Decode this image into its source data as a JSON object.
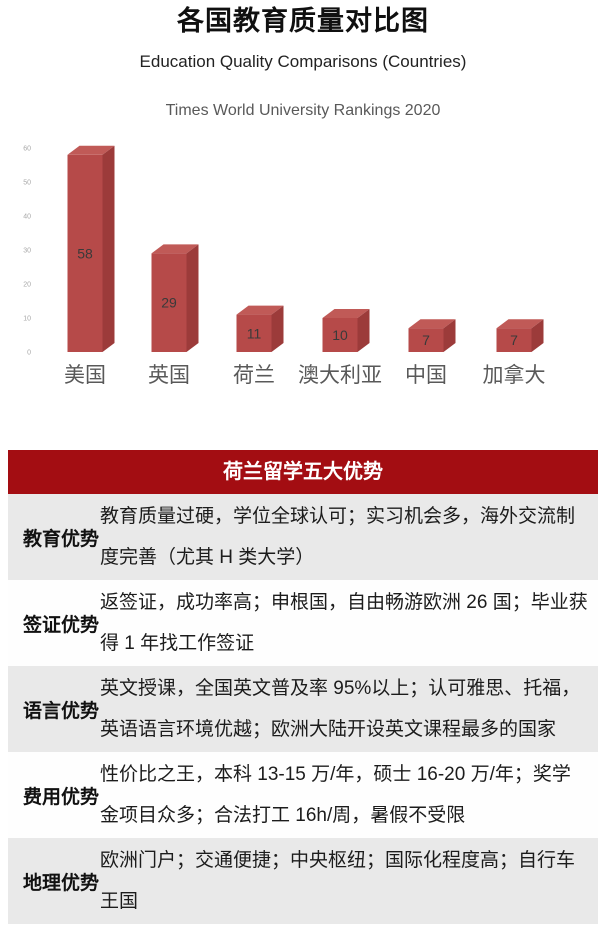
{
  "page": {
    "title": "各国教育质量对比图",
    "subtitle": "Education Quality Comparisons (Countries)",
    "caption": "Times World University Rankings 2020"
  },
  "chart_data": {
    "type": "bar",
    "style": "3d-bar",
    "title": "Times World University Rankings 2020",
    "categories": [
      "美国",
      "英国",
      "荷兰",
      "澳大利亚",
      "中国",
      "加拿大"
    ],
    "values": [
      58,
      29,
      11,
      10,
      7,
      7
    ],
    "xlabel": "",
    "ylabel": "",
    "ylim": [
      0,
      60
    ],
    "yticks": [
      0,
      10,
      20,
      30,
      40,
      50,
      60
    ],
    "grid": false,
    "legend": false,
    "colors": {
      "bar_front": "#b64a49",
      "bar_top": "#c05a57",
      "bar_side": "#9c3b3a",
      "label": "#595959",
      "tick": "#a8a8a8",
      "value_label": "#3a3a3a"
    }
  },
  "table": {
    "header": "荷兰留学五大优势",
    "header_bg": "#a30d12",
    "header_text_color": "#ffffff",
    "row_alt_bg": "#e9e9e9",
    "rows": [
      {
        "label": "教育优势",
        "content": "教育质量过硬，学位全球认可；实习机会多，海外交流制度完善（尤其 H 类大学）"
      },
      {
        "label": "签证优势",
        "content": "返签证，成功率高；申根国，自由畅游欧洲 26 国；毕业获得 1 年找工作签证"
      },
      {
        "label": "语言优势",
        "content": "英文授课，全国英文普及率 95%以上；认可雅思、托福，英语语言环境优越；欧洲大陆开设英文课程最多的国家"
      },
      {
        "label": "费用优势",
        "content": "性价比之王，本科 13-15 万/年，硕士 16-20 万/年；奖学金项目众多；合法打工 16h/周，暑假不受限"
      },
      {
        "label": "地理优势",
        "content": "欧洲门户；交通便捷；中央枢纽；国际化程度高；自行车王国"
      }
    ]
  }
}
